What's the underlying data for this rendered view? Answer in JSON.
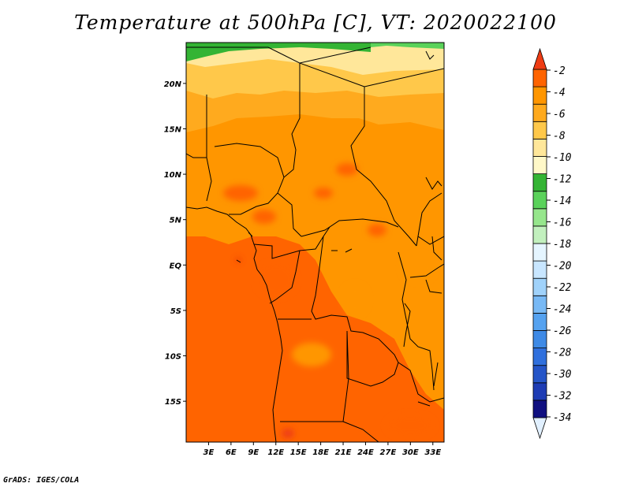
{
  "title": "Temperature at 500hPa [C], VT: 2020022100",
  "credit": "GrADS: IGES/COLA",
  "map": {
    "lon_range": [
      0,
      34.5
    ],
    "lat_range": [
      -19.5,
      24.5
    ],
    "x_ticks": [
      {
        "lon": 3,
        "label": "3E"
      },
      {
        "lon": 6,
        "label": "6E"
      },
      {
        "lon": 9,
        "label": "9E"
      },
      {
        "lon": 12,
        "label": "12E"
      },
      {
        "lon": 15,
        "label": "15E"
      },
      {
        "lon": 18,
        "label": "18E"
      },
      {
        "lon": 21,
        "label": "21E"
      },
      {
        "lon": 24,
        "label": "24E"
      },
      {
        "lon": 27,
        "label": "27E"
      },
      {
        "lon": 30,
        "label": "30E"
      },
      {
        "lon": 33,
        "label": "33E"
      }
    ],
    "y_ticks": [
      {
        "lat": 20,
        "label": "20N"
      },
      {
        "lat": 15,
        "label": "15N"
      },
      {
        "lat": 10,
        "label": "10N"
      },
      {
        "lat": 5,
        "label": "5N"
      },
      {
        "lat": 0,
        "label": "EQ"
      },
      {
        "lat": -5,
        "label": "5S"
      },
      {
        "lat": -10,
        "label": "10S"
      },
      {
        "lat": -15,
        "label": "15S"
      }
    ]
  },
  "colorbar": {
    "colors": [
      "#e1f0ff",
      "#101080",
      "#1e3cb4",
      "#2555c8",
      "#3070dd",
      "#3e8ae6",
      "#55a2f0",
      "#78b9f5",
      "#a0d2fa",
      "#c8e6ff",
      "#e5f5ff",
      "#c2f0be",
      "#96e68c",
      "#5ad25a",
      "#34b434",
      "#fff8c8",
      "#ffe79a",
      "#ffc84a",
      "#ffaa1e",
      "#ff9600",
      "#ff6400",
      "#ee3c14"
    ],
    "labels": [
      "-34",
      "-32",
      "-30",
      "-28",
      "-26",
      "-24",
      "-22",
      "-20",
      "-18",
      "-16",
      "-14",
      "-12",
      "-10",
      "-8",
      "-6",
      "-4",
      "-2"
    ]
  }
}
